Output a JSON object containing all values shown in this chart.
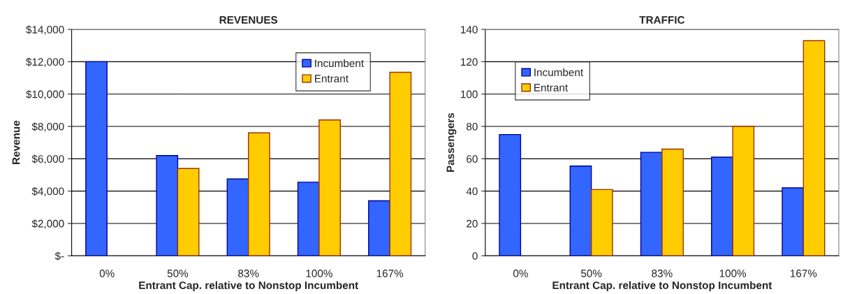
{
  "chart_data": [
    {
      "type": "bar",
      "title": "REVENUES",
      "xlabel": "Entrant Cap. relative to Nonstop Incumbent",
      "ylabel": "Revenue",
      "categories": [
        "0%",
        "50%",
        "83%",
        "100%",
        "167%"
      ],
      "series": [
        {
          "name": "Incumbent",
          "color": "#3366ff",
          "values": [
            12000,
            6200,
            4750,
            4550,
            3400
          ]
        },
        {
          "name": "Entrant",
          "color": "#ffcc00",
          "values": [
            null,
            5400,
            7600,
            8400,
            11350
          ]
        }
      ],
      "ylim": [
        0,
        14000
      ],
      "yticks": [
        {
          "value": 0,
          "label": "$-"
        },
        {
          "value": 2000,
          "label": "$2,000"
        },
        {
          "value": 4000,
          "label": "$4,000"
        },
        {
          "value": 6000,
          "label": "$6,000"
        },
        {
          "value": 8000,
          "label": "$8,000"
        },
        {
          "value": 10000,
          "label": "$10,000"
        },
        {
          "value": 12000,
          "label": "$12,000"
        },
        {
          "value": 14000,
          "label": "$14,000"
        }
      ],
      "grid": "y",
      "legend": "top right"
    },
    {
      "type": "bar",
      "title": "TRAFFIC",
      "xlabel": "Entrant Cap. relative to Nonstop Incumbent",
      "ylabel": "Passengers",
      "categories": [
        "0%",
        "50%",
        "83%",
        "100%",
        "167%"
      ],
      "series": [
        {
          "name": "Incumbent",
          "color": "#3366ff",
          "values": [
            75,
            55.5,
            64,
            61,
            42
          ]
        },
        {
          "name": "Entrant",
          "color": "#ffcc00",
          "values": [
            null,
            41,
            66,
            80,
            133
          ]
        }
      ],
      "ylim": [
        0,
        140
      ],
      "yticks": [
        0,
        20,
        40,
        60,
        80,
        100,
        120,
        140
      ],
      "grid": "y",
      "legend": "top left"
    }
  ]
}
